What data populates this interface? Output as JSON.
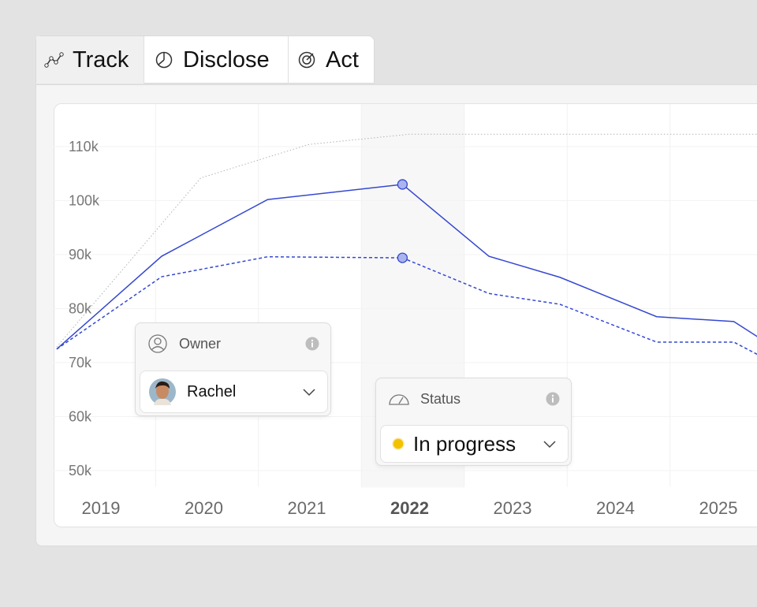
{
  "tabs": [
    "Track",
    "Disclose",
    "Act"
  ],
  "chart_data": {
    "type": "line",
    "series": [
      {
        "color": "#b3b3b3",
        "style": "dotted",
        "x": [
          2018.57,
          2019.97,
          2021.02,
          2022.0,
          2025.38
        ],
        "values": [
          72900,
          104200,
          110400,
          112300,
          112300
        ]
      },
      {
        "color": "#3548d0",
        "style": "solid",
        "x": [
          2018.57,
          2019.59,
          2020.62,
          2021.93,
          2022.77,
          2023.46,
          2024.4,
          2025.15,
          2025.38
        ],
        "values": [
          72500,
          89700,
          100200,
          103000,
          89700,
          85800,
          78500,
          77600,
          74800
        ],
        "marker_index": 3
      },
      {
        "color": "#3548d0",
        "style": "dashed",
        "x": [
          2018.57,
          2019.59,
          2020.62,
          2021.93,
          2022.77,
          2023.46,
          2024.4,
          2025.15,
          2025.38
        ],
        "values": [
          72500,
          85900,
          89600,
          89400,
          82800,
          80800,
          73800,
          73800,
          71500
        ],
        "marker_index": 3
      }
    ],
    "xlim": [
      2018.54,
      2025.38
    ],
    "xticks": [
      2019,
      2020,
      2021,
      2022,
      2023,
      2024,
      2025
    ],
    "highlight": 2022,
    "ylim": [
      47000,
      118000
    ],
    "yticks": [
      {
        "value": 50000,
        "label": "50k"
      },
      {
        "value": 60000,
        "label": "60k"
      },
      {
        "value": 70000,
        "label": "70k"
      },
      {
        "value": 80000,
        "label": "80k"
      },
      {
        "value": 90000,
        "label": "90k"
      },
      {
        "value": 100000,
        "label": "100k"
      },
      {
        "value": 110000,
        "label": "110k"
      }
    ],
    "grid": true
  },
  "owner": {
    "label": "Owner",
    "value": "Rachel"
  },
  "status": {
    "label": "Status",
    "value": "In progress"
  }
}
